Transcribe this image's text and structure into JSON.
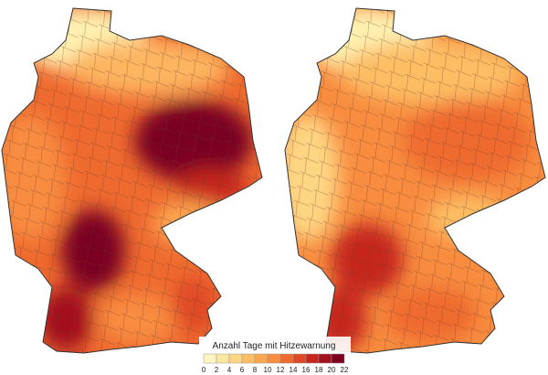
{
  "legend": {
    "title": "Anzahl Tage mit Hitzewarnung",
    "ticks": [
      0,
      2,
      4,
      6,
      8,
      10,
      12,
      14,
      16,
      18,
      20,
      22
    ],
    "colors": [
      "#fff5c0",
      "#fee8a0",
      "#fed582",
      "#fdbd64",
      "#fca650",
      "#f88c3f",
      "#ef6a2f",
      "#e04826",
      "#c6261f",
      "#a3101f",
      "#7a0020"
    ]
  }
}
